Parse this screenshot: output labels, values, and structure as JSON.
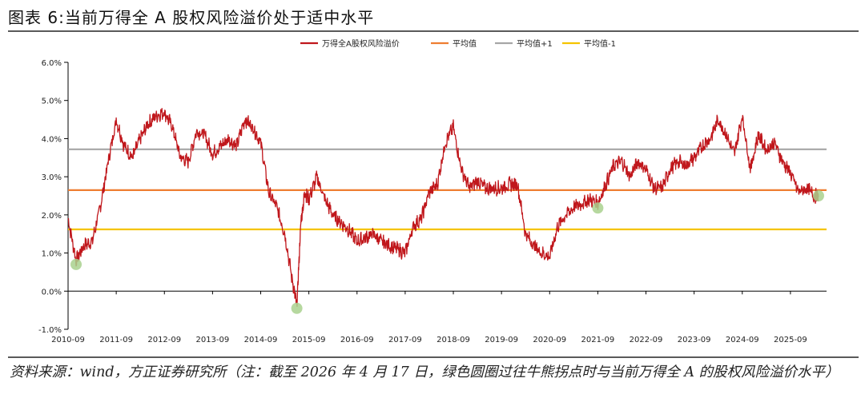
{
  "header": {
    "title": "图表 6:当前万得全 A 股权风险溢价处于适中水平"
  },
  "footer": {
    "source": "资料来源：wind，方正证券研究所（注：截至 2026 年 4 月 17 日，绿色圆圈过往牛熊拐点时与当前万得全 A 的股权风险溢价水平）"
  },
  "colors": {
    "erp": "#c0171c",
    "mean": "#ee7d31",
    "plus1": "#a6a6a6",
    "minus1": "#f5c400",
    "highlight": "#a9d18e",
    "grid": "#d9d9d9",
    "axis": "#000000"
  },
  "chart_data": {
    "type": "line",
    "title": "",
    "xlabel": "",
    "ylabel": "",
    "ylim": [
      -1.0,
      6.0
    ],
    "yticks": [
      "-1.0%",
      "0.0%",
      "1.0%",
      "2.0%",
      "3.0%",
      "4.0%",
      "5.0%",
      "6.0%"
    ],
    "xticks": [
      "2010-09",
      "2011-09",
      "2012-09",
      "2013-09",
      "2014-09",
      "2015-09",
      "2016-09",
      "2017-09",
      "2018-09",
      "2019-09",
      "2020-09",
      "2021-09",
      "2022-09",
      "2023-09",
      "2024-09",
      "2025-09"
    ],
    "legend_position": "top-center",
    "series": [
      {
        "name": "万得全A股权风险溢价",
        "type": "line",
        "color": "#c0171c",
        "x": [
          "2010-09",
          "2010-11",
          "2011-01",
          "2011-03",
          "2011-05",
          "2011-07",
          "2011-09",
          "2011-11",
          "2012-01",
          "2012-03",
          "2012-05",
          "2012-07",
          "2012-09",
          "2012-11",
          "2013-01",
          "2013-03",
          "2013-05",
          "2013-07",
          "2013-09",
          "2013-11",
          "2014-01",
          "2014-03",
          "2014-05",
          "2014-07",
          "2014-09",
          "2014-11",
          "2015-01",
          "2015-03",
          "2015-05",
          "2015-06",
          "2015-07",
          "2015-08",
          "2015-09",
          "2015-11",
          "2016-01",
          "2016-03",
          "2016-05",
          "2016-07",
          "2016-09",
          "2016-11",
          "2017-01",
          "2017-03",
          "2017-05",
          "2017-07",
          "2017-09",
          "2017-11",
          "2018-01",
          "2018-03",
          "2018-05",
          "2018-07",
          "2018-09",
          "2018-11",
          "2019-01",
          "2019-03",
          "2019-05",
          "2019-07",
          "2019-09",
          "2019-11",
          "2020-01",
          "2020-03",
          "2020-05",
          "2020-07",
          "2020-09",
          "2020-11",
          "2021-01",
          "2021-03",
          "2021-05",
          "2021-07",
          "2021-09",
          "2021-11",
          "2022-01",
          "2022-03",
          "2022-05",
          "2022-07",
          "2022-09",
          "2022-11",
          "2023-01",
          "2023-03",
          "2023-05",
          "2023-07",
          "2023-09",
          "2023-11",
          "2024-01",
          "2024-03",
          "2024-05",
          "2024-07",
          "2024-09",
          "2024-11",
          "2025-01",
          "2025-03",
          "2025-05",
          "2025-07",
          "2025-09",
          "2025-11",
          "2026-01",
          "2026-03",
          "2026-04"
        ],
        "y": [
          1.9,
          0.8,
          1.2,
          1.3,
          2.2,
          3.4,
          4.5,
          3.8,
          3.5,
          4.0,
          4.4,
          4.6,
          4.7,
          4.3,
          3.5,
          3.4,
          4.2,
          4.1,
          3.6,
          3.8,
          4.0,
          3.8,
          4.5,
          4.3,
          3.9,
          2.6,
          2.2,
          1.5,
          0.2,
          -0.4,
          1.8,
          2.6,
          2.4,
          3.0,
          2.4,
          2.0,
          1.8,
          1.6,
          1.3,
          1.4,
          1.5,
          1.3,
          1.2,
          1.1,
          1.0,
          1.7,
          1.9,
          2.6,
          2.8,
          3.9,
          4.3,
          3.2,
          2.7,
          2.9,
          2.7,
          2.7,
          2.7,
          2.8,
          2.8,
          1.5,
          1.2,
          1.0,
          0.9,
          1.7,
          2.0,
          2.2,
          2.3,
          2.4,
          2.3,
          2.8,
          3.3,
          3.4,
          3.0,
          3.4,
          3.2,
          2.7,
          2.7,
          3.2,
          3.4,
          3.3,
          3.5,
          3.8,
          4.0,
          4.5,
          4.1,
          3.6,
          4.6,
          3.2,
          4.1,
          3.7,
          3.9,
          3.4,
          3.1,
          2.6,
          2.7,
          2.5,
          2.5
        ]
      },
      {
        "name": "平均值",
        "type": "hline",
        "color": "#ee7d31",
        "y": 2.65
      },
      {
        "name": "平均值+1",
        "type": "hline",
        "color": "#a6a6a6",
        "y": 3.72
      },
      {
        "name": "平均值-1",
        "type": "hline",
        "color": "#f5c400",
        "y": 1.62
      }
    ],
    "highlights": [
      {
        "x": "2010-11",
        "y": 0.7
      },
      {
        "x": "2015-06",
        "y": -0.45
      },
      {
        "x": "2021-09",
        "y": 2.18
      },
      {
        "x": "2026-04",
        "y": 2.5
      }
    ]
  }
}
